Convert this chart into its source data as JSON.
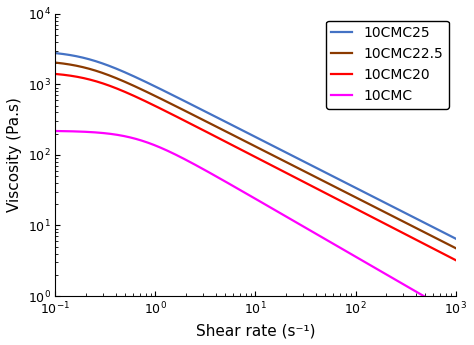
{
  "xlabel": "Shear rate (s⁻¹)",
  "ylabel": "Viscosity (Pa.s)",
  "xlim_log": [
    -1,
    3
  ],
  "ylim_log": [
    0,
    4
  ],
  "series": [
    {
      "label": "10CMC25",
      "color": "#4472C4",
      "eta0": 3000,
      "eta_inf": 0.001,
      "lam": 5.0,
      "n": 0.28
    },
    {
      "label": "10CMC22.5",
      "color": "#8B3A00",
      "eta0": 2200,
      "eta_inf": 0.001,
      "lam": 5.0,
      "n": 0.28
    },
    {
      "label": "10CMC20",
      "color": "#FF0000",
      "eta0": 1500,
      "eta_inf": 0.001,
      "lam": 4.5,
      "n": 0.27
    },
    {
      "label": "10CMC",
      "color": "#FF00FF",
      "eta0": 220,
      "eta_inf": 0.001,
      "lam": 1.5,
      "n": 0.18
    }
  ],
  "legend_loc": "upper right",
  "fontsize_labels": 11,
  "fontsize_legend": 10,
  "linewidth": 1.6,
  "background_color": "#ffffff"
}
